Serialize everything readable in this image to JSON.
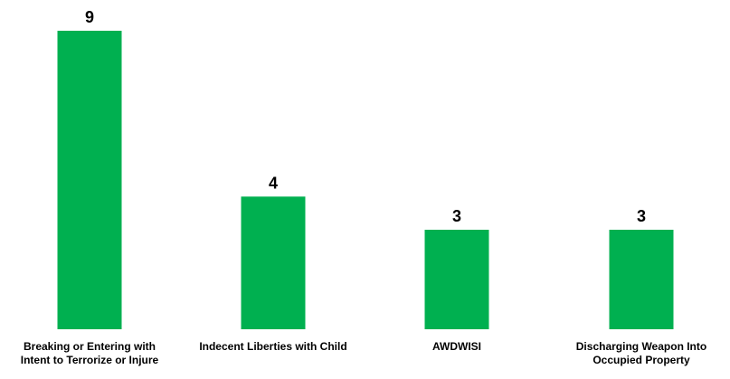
{
  "chart_data": {
    "type": "bar",
    "categories": [
      "Breaking or Entering with\nIntent to Terrorize or Injure",
      "Indecent Liberties with Child",
      "AWDWISI",
      "Discharging Weapon Into\nOccupied Property"
    ],
    "values": [
      9,
      4,
      3,
      3
    ],
    "data_labels": [
      "9",
      "4",
      "3",
      "3"
    ],
    "title": "",
    "xlabel": "",
    "ylabel": "",
    "ylim": [
      0,
      9
    ],
    "grid": false,
    "legend": "none",
    "colors": {
      "bar": "#00B050",
      "text": "#000000"
    }
  }
}
